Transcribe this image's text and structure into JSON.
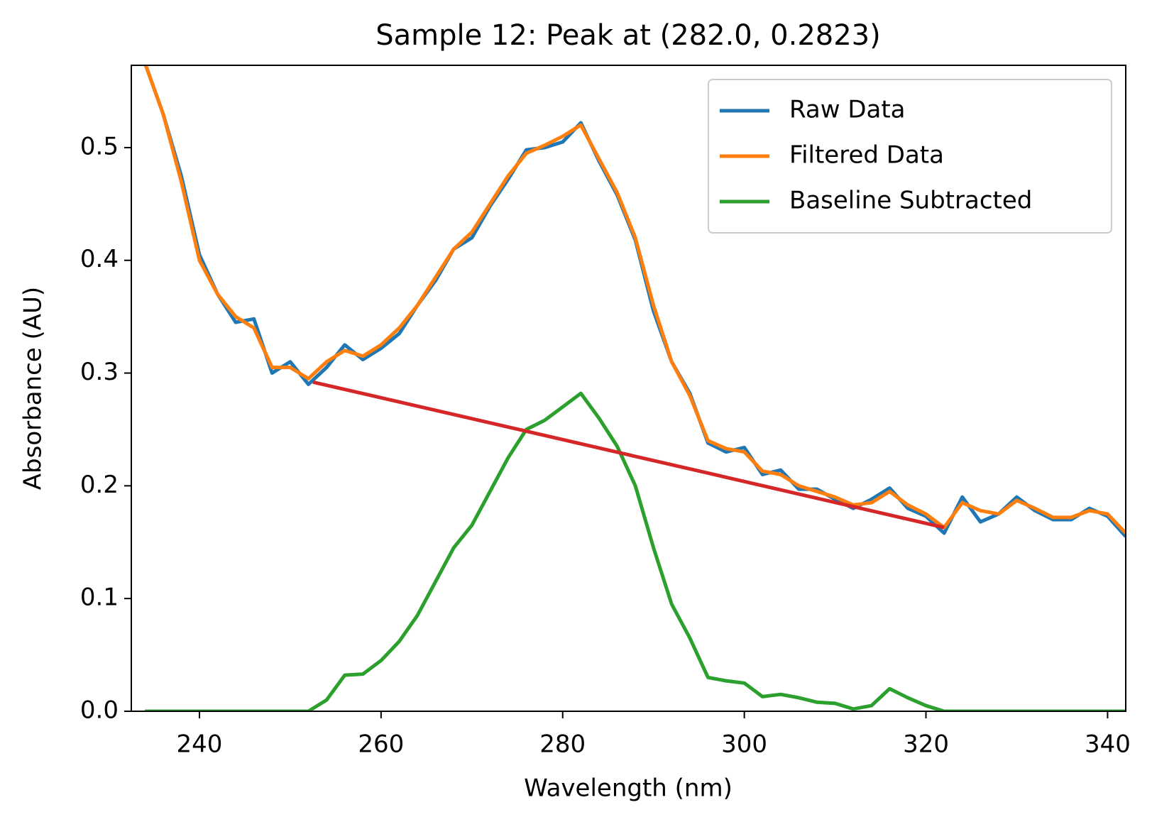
{
  "chart_data": {
    "type": "line",
    "title": "Sample 12: Peak at (282.0, 0.2823)",
    "xlabel": "Wavelength (nm)",
    "ylabel": "Absorbance (AU)",
    "x": [
      234,
      236,
      238,
      240,
      242,
      244,
      246,
      248,
      250,
      252,
      254,
      256,
      258,
      260,
      262,
      264,
      266,
      268,
      270,
      272,
      274,
      276,
      278,
      280,
      282,
      284,
      286,
      288,
      290,
      292,
      294,
      296,
      298,
      300,
      302,
      304,
      306,
      308,
      310,
      312,
      314,
      316,
      318,
      320,
      322,
      324,
      326,
      328,
      330,
      332,
      334,
      336,
      338,
      340,
      342
    ],
    "series": [
      {
        "name": "Raw Data",
        "color": "#1f77b4",
        "values": [
          0.575,
          0.53,
          0.475,
          0.405,
          0.37,
          0.345,
          0.348,
          0.3,
          0.31,
          0.29,
          0.305,
          0.325,
          0.312,
          0.322,
          0.335,
          0.36,
          0.382,
          0.41,
          0.42,
          0.448,
          0.472,
          0.498,
          0.5,
          0.505,
          0.522,
          0.488,
          0.458,
          0.418,
          0.355,
          0.31,
          0.282,
          0.238,
          0.23,
          0.234,
          0.21,
          0.214,
          0.197,
          0.197,
          0.188,
          0.18,
          0.188,
          0.198,
          0.18,
          0.173,
          0.158,
          0.19,
          0.168,
          0.175,
          0.19,
          0.178,
          0.17,
          0.17,
          0.18,
          0.173,
          0.155
        ]
      },
      {
        "name": "Filtered Data",
        "color": "#ff7f0e",
        "values": [
          0.575,
          0.53,
          0.47,
          0.4,
          0.37,
          0.35,
          0.34,
          0.305,
          0.305,
          0.295,
          0.31,
          0.32,
          0.315,
          0.325,
          0.34,
          0.36,
          0.385,
          0.41,
          0.425,
          0.45,
          0.475,
          0.495,
          0.502,
          0.51,
          0.52,
          0.49,
          0.46,
          0.42,
          0.36,
          0.31,
          0.28,
          0.24,
          0.233,
          0.23,
          0.213,
          0.21,
          0.2,
          0.195,
          0.19,
          0.183,
          0.185,
          0.195,
          0.183,
          0.175,
          0.163,
          0.185,
          0.178,
          0.175,
          0.187,
          0.18,
          0.172,
          0.172,
          0.178,
          0.175,
          0.158
        ]
      },
      {
        "name": "Baseline Subtracted",
        "color": "#2ca02c",
        "values": [
          0,
          0,
          0,
          0,
          0,
          0,
          0,
          0,
          0,
          0,
          0.01,
          0.032,
          0.033,
          0.045,
          0.062,
          0.085,
          0.115,
          0.145,
          0.165,
          0.195,
          0.225,
          0.25,
          0.258,
          0.27,
          0.282,
          0.26,
          0.235,
          0.2,
          0.145,
          0.095,
          0.065,
          0.03,
          0.027,
          0.025,
          0.013,
          0.015,
          0.012,
          0.008,
          0.007,
          0.002,
          0.005,
          0.02,
          0.012,
          0.005,
          0,
          0,
          0,
          0,
          0,
          0,
          0,
          0,
          0,
          0,
          0
        ]
      },
      {
        "color": "#d62728",
        "x": [
          252.5,
          322
        ],
        "values": [
          0.292,
          0.163
        ]
      }
    ],
    "xlim": [
      232.5,
      342
    ],
    "ylim": [
      0,
      0.573
    ],
    "xticks": [
      240,
      260,
      280,
      300,
      320,
      340
    ],
    "yticks": [
      {
        "value": 0,
        "label": "0.0"
      },
      0.1,
      0.2,
      0.3,
      0.4,
      0.5
    ],
    "legend": "upper right"
  }
}
